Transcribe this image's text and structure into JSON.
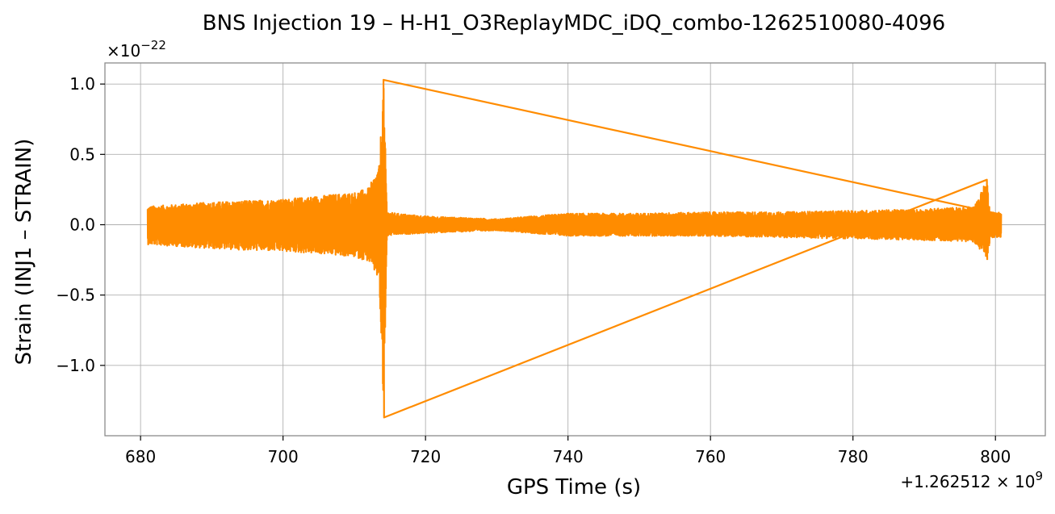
{
  "chart_data": {
    "type": "line",
    "title": "BNS Injection 19 – H-H1_O3ReplayMDC_iDQ_combo-1262510080-4096",
    "xlabel": "GPS Time (s)",
    "ylabel": "Strain (INJ1 – STRAIN)",
    "x_offset_label": "+1.262512 × 10^9",
    "y_scale_label": "×10^−22",
    "xlim": [
      675,
      807
    ],
    "ylim": [
      -1.5,
      1.15
    ],
    "xticks": [
      680,
      700,
      720,
      740,
      760,
      780,
      800
    ],
    "xtick_labels": [
      "680",
      "700",
      "720",
      "740",
      "760",
      "780",
      "800"
    ],
    "yticks": [
      1.0,
      0.5,
      0.0,
      -0.5,
      -1.0
    ],
    "ytick_labels": [
      "1.0",
      "0.5",
      "0.0",
      "−0.5",
      "−1.0"
    ],
    "grid": true,
    "series": [
      {
        "color": "#ff8c00",
        "envelope": {
          "x": [
            681.0,
            690.0,
            700.0,
            706.0,
            710.0,
            712.0,
            713.5,
            714.1,
            714.6,
            716.0,
            720.0,
            725.0,
            730.0,
            735.0,
            740.0,
            750.0,
            760.0,
            770.0,
            780.0,
            790.0,
            797.0,
            798.8,
            799.3,
            800.8
          ],
          "upper": [
            0.13,
            0.16,
            0.18,
            0.21,
            0.23,
            0.26,
            0.42,
            1.03,
            0.09,
            0.08,
            0.06,
            0.05,
            0.04,
            0.06,
            0.08,
            0.08,
            0.09,
            0.09,
            0.1,
            0.11,
            0.13,
            0.32,
            0.09,
            0.09
          ],
          "lower": [
            -0.14,
            -0.17,
            -0.19,
            -0.21,
            -0.23,
            -0.26,
            -0.4,
            -1.37,
            -0.08,
            -0.07,
            -0.06,
            -0.05,
            -0.04,
            -0.06,
            -0.08,
            -0.08,
            -0.08,
            -0.09,
            -0.1,
            -0.11,
            -0.12,
            -0.25,
            -0.09,
            -0.09
          ]
        }
      }
    ]
  }
}
